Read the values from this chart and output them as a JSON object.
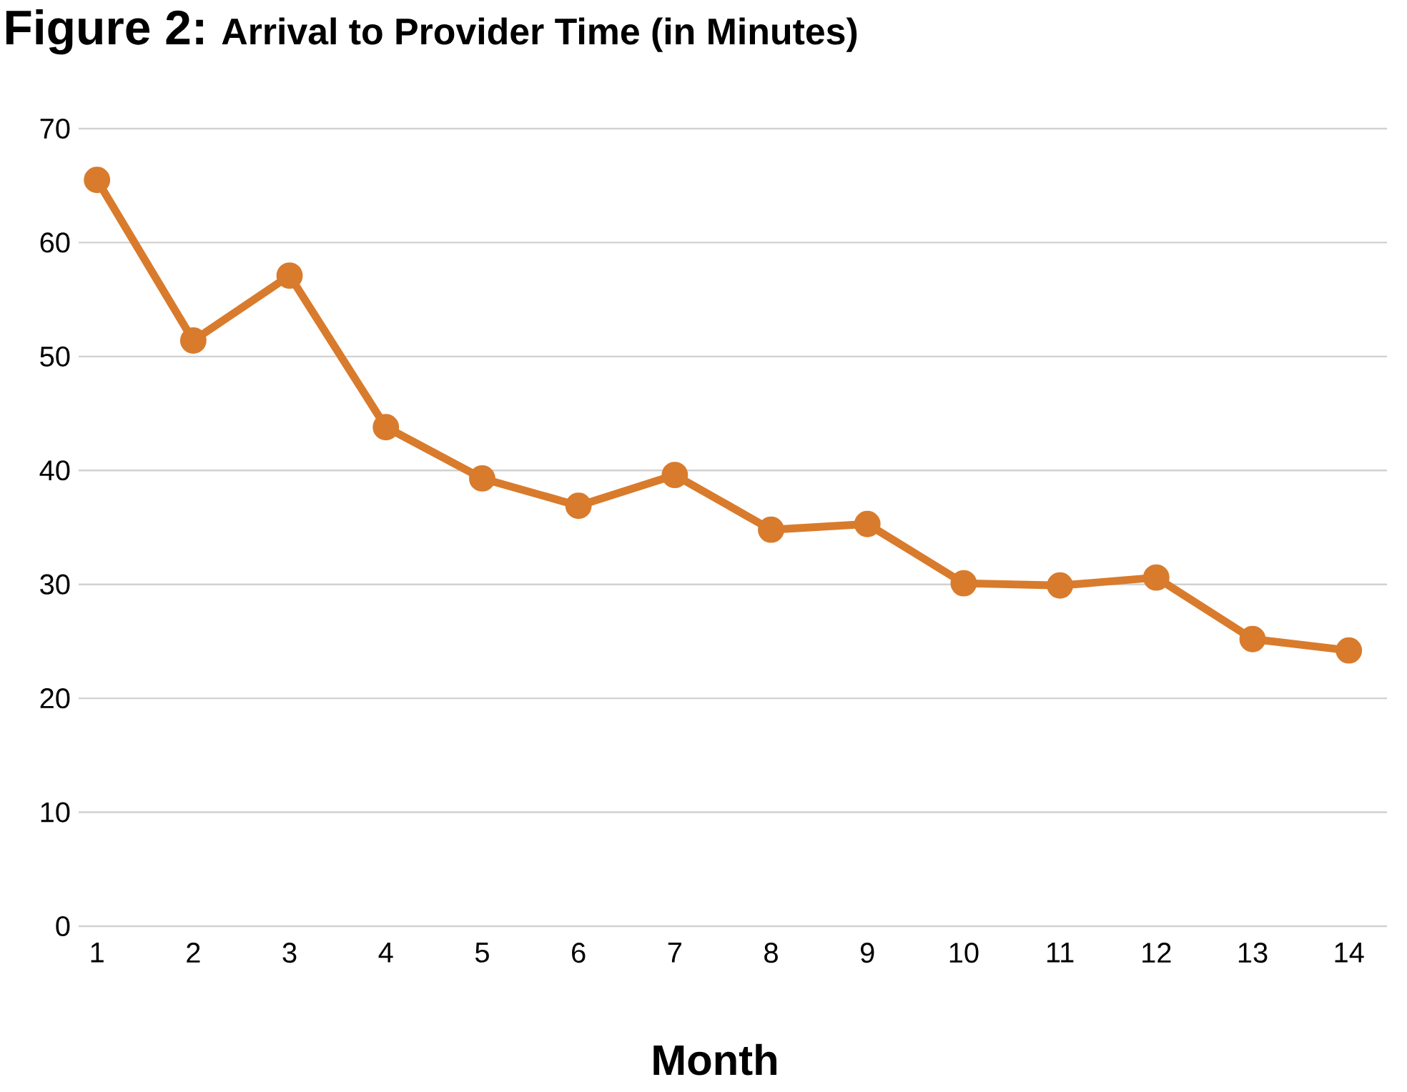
{
  "chart_data": {
    "type": "line",
    "title": "Figure 2:",
    "subtitle": "Arrival to Provider Time (in Minutes)",
    "xlabel": "Month",
    "categories": [
      "1",
      "2",
      "3",
      "4",
      "5",
      "6",
      "7",
      "8",
      "9",
      "10",
      "11",
      "12",
      "13",
      "14"
    ],
    "series": [
      {
        "color": "#d97b2c",
        "values": [
          65.5,
          51.4,
          57.1,
          43.8,
          39.3,
          36.9,
          39.6,
          34.8,
          35.3,
          30.1,
          29.9,
          30.6,
          25.2,
          24.2
        ]
      }
    ],
    "ylim": [
      0,
      70
    ],
    "yticks": [
      0,
      10,
      20,
      30,
      40,
      50,
      60,
      70
    ],
    "grid": "y",
    "marker": "circle",
    "line_style": "solid"
  }
}
